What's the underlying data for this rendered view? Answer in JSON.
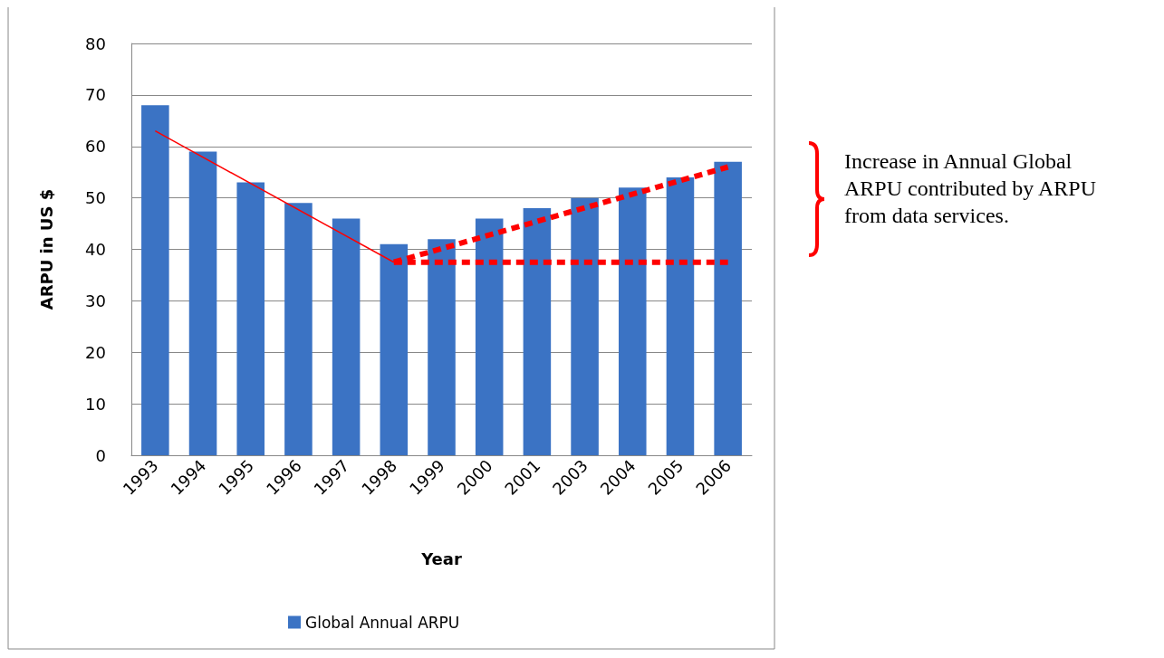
{
  "chart_data": {
    "type": "bar",
    "xlabel": "Year",
    "ylabel": "ARPU in US $",
    "categories": [
      "1993",
      "1994",
      "1995",
      "1996",
      "1997",
      "1998",
      "1999",
      "2000",
      "2001",
      "2003",
      "2004",
      "2005",
      "2006"
    ],
    "series": [
      {
        "name": "Global Annual ARPU",
        "color": "#3b73c4",
        "values": [
          68,
          59,
          53,
          49,
          46,
          41,
          42,
          46,
          48,
          50,
          52,
          54,
          57
        ]
      },
      {
        "type": "line",
        "color": "#ff0000",
        "line_style": "solid",
        "values": [
          63,
          null,
          null,
          null,
          null,
          37.5,
          null,
          null,
          null,
          null,
          null,
          null,
          null
        ]
      },
      {
        "type": "line",
        "color": "#ff0000",
        "line_style": "dashed",
        "values": [
          null,
          null,
          null,
          null,
          null,
          37.5,
          null,
          null,
          null,
          null,
          null,
          null,
          56
        ]
      },
      {
        "type": "line",
        "color": "#ff0000",
        "line_style": "dashed",
        "values": [
          null,
          null,
          null,
          null,
          null,
          37.5,
          null,
          null,
          null,
          null,
          null,
          null,
          37.5
        ]
      }
    ],
    "ylim": [
      0,
      80
    ],
    "yticks": [
      0,
      10,
      20,
      30,
      40,
      50,
      60,
      70,
      80
    ],
    "grid": "y",
    "legend": "bottom",
    "annotations": [
      "Increase in Annual Global ARPU contributed by ARPU from data services."
    ]
  }
}
